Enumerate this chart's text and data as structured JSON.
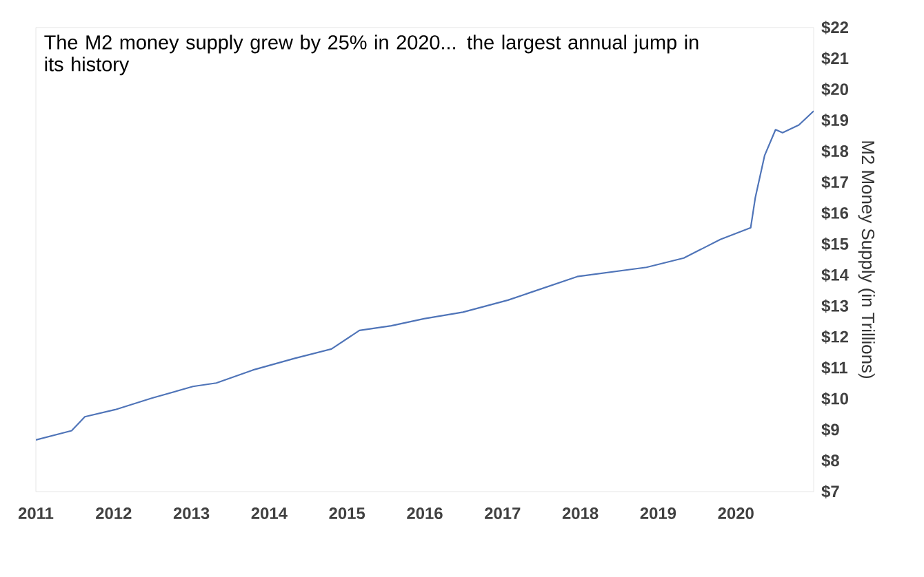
{
  "chart_data": {
    "type": "line",
    "title": "The M2 money supply grew by 25% in 2020... the largest annual jump in its history",
    "ylabel": "M2 Money Supply (in Trillions)",
    "x": [
      2011.0,
      2011.46,
      2011.63,
      2012.02,
      2012.49,
      2013.02,
      2013.32,
      2013.79,
      2014.33,
      2014.8,
      2015.16,
      2015.57,
      2015.99,
      2016.49,
      2017.07,
      2017.96,
      2018.85,
      2019.33,
      2019.8,
      2020.19,
      2020.25,
      2020.37,
      2020.51,
      2020.6,
      2020.81,
      2021.0
    ],
    "series": [
      {
        "color": "#4f74b8",
        "values": [
          8.67,
          8.97,
          9.42,
          9.65,
          10.02,
          10.4,
          10.51,
          10.93,
          11.31,
          11.61,
          12.21,
          12.36,
          12.59,
          12.8,
          13.19,
          13.95,
          14.25,
          14.55,
          15.15,
          15.53,
          16.51,
          17.87,
          18.7,
          18.6,
          18.85,
          19.3
        ]
      }
    ],
    "xlim": [
      2011,
      2021
    ],
    "ylim": [
      7,
      22
    ],
    "xticks": [
      2011,
      2012,
      2013,
      2014,
      2015,
      2016,
      2017,
      2018,
      2019,
      2020
    ],
    "yticks": [
      {
        "value": 7,
        "label": "$7"
      },
      {
        "value": 8,
        "label": "$8"
      },
      {
        "value": 9,
        "label": "$9"
      },
      {
        "value": 10,
        "label": "$10"
      },
      {
        "value": 11,
        "label": "$11"
      },
      {
        "value": 12,
        "label": "$12"
      },
      {
        "value": 13,
        "label": "$13"
      },
      {
        "value": 14,
        "label": "$14"
      },
      {
        "value": 15,
        "label": "$15"
      },
      {
        "value": 16,
        "label": "$16"
      },
      {
        "value": 17,
        "label": "$17"
      },
      {
        "value": 18,
        "label": "$18"
      },
      {
        "value": 19,
        "label": "$19"
      },
      {
        "value": 20,
        "label": "$20"
      },
      {
        "value": 21,
        "label": "$21"
      },
      {
        "value": 22,
        "label": "$22"
      }
    ],
    "grid": false,
    "marker": "none",
    "line_style": "solid"
  }
}
